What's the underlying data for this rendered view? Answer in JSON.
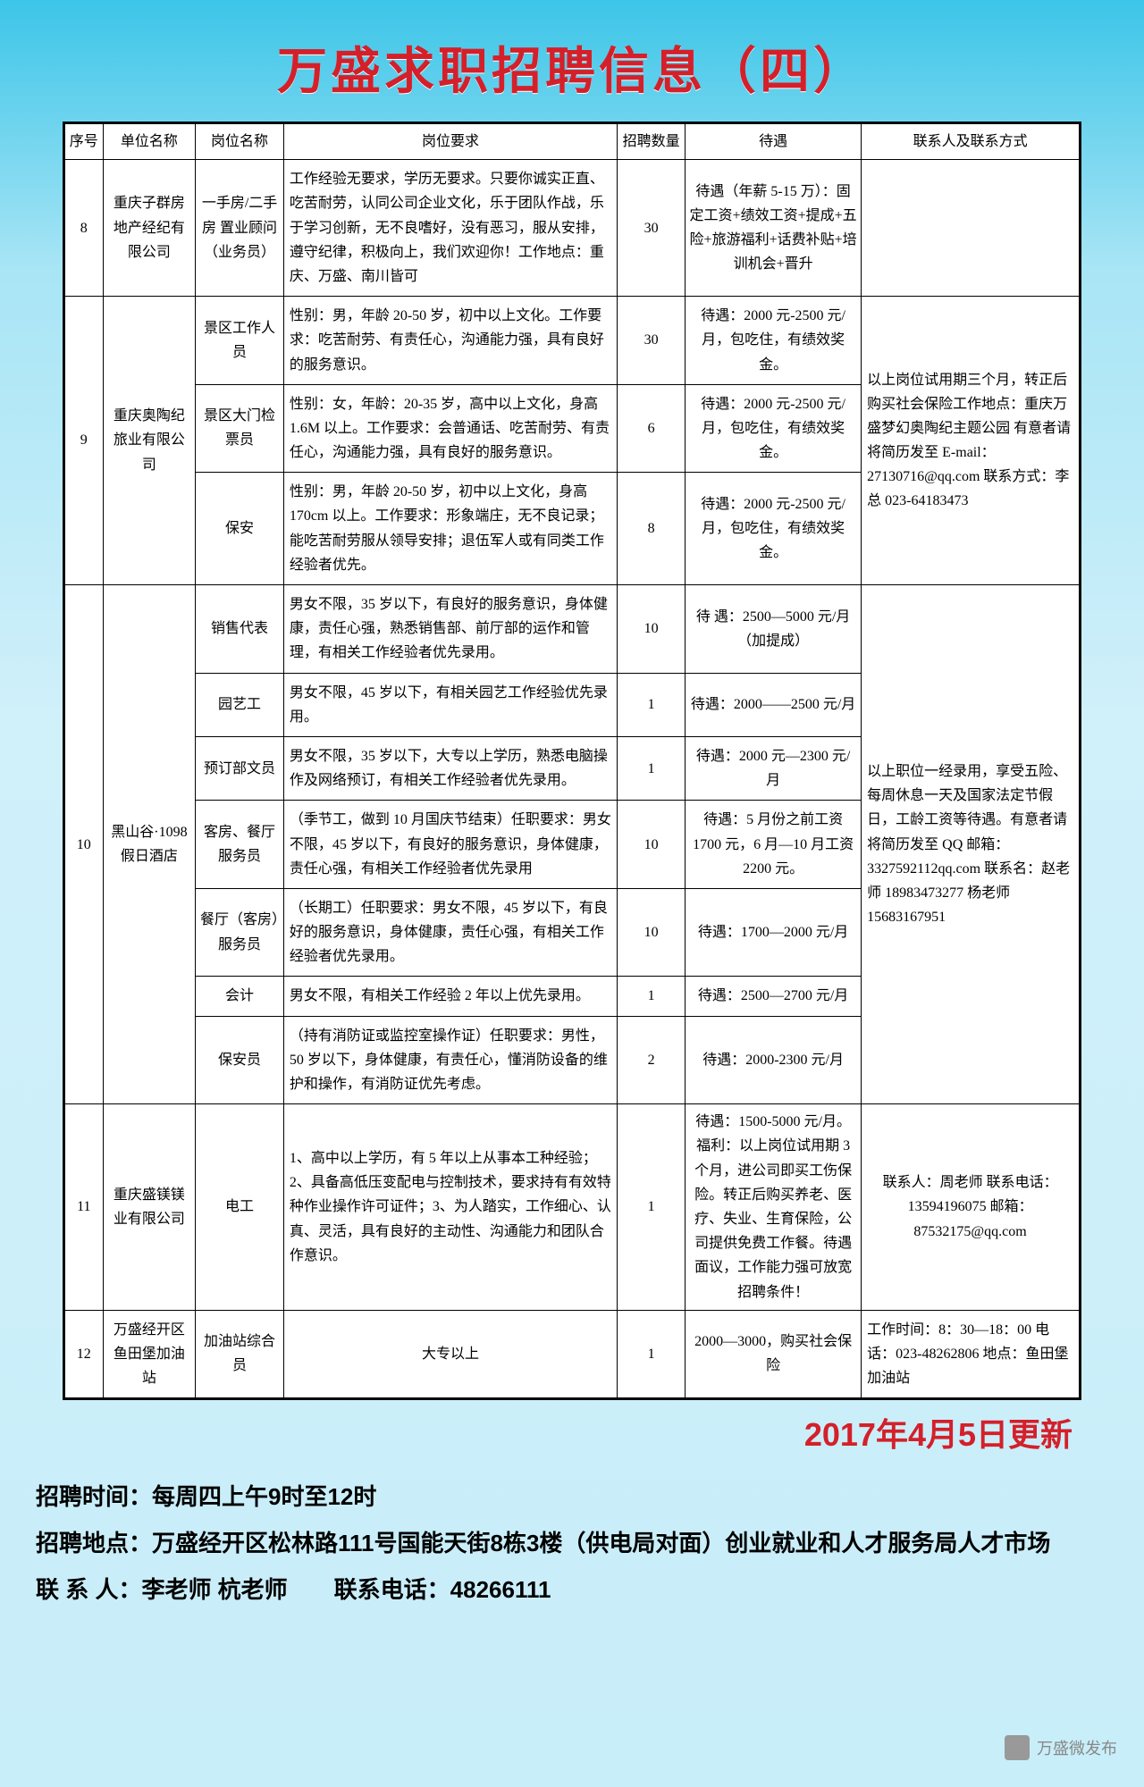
{
  "title": "万盛求职招聘信息（四）",
  "headers": [
    "序号",
    "单位名称",
    "岗位名称",
    "岗位要求",
    "招聘数量",
    "待遇",
    "联系人及联系方式"
  ],
  "rows": [
    {
      "idx": "8",
      "unit": "重庆子群房地产经纪有限公司",
      "pos": "一手房/二手房 置业顾问（业务员）",
      "req": "工作经验无要求，学历无要求。只要你诚实正直、吃苦耐劳，认同公司企业文化，乐于团队作战，乐于学习创新，无不良嗜好，没有恶习，服从安排，遵守纪律，积极向上，我们欢迎你！工作地点：重庆、万盛、南川皆可",
      "num": "30",
      "treat": "待遇（年薪 5-15 万）：固定工资+绩效工资+提成+五险+旅游福利+话费补贴+培训机会+晋升",
      "contact": ""
    }
  ],
  "group9": {
    "idx": "9",
    "unit": "重庆奥陶纪旅业有限公司",
    "contact": "以上岗位试用期三个月，转正后购买社会保险工作地点：重庆万盛梦幻奥陶纪主题公园 有意者请将简历发至 E-mail：27130716@qq.com 联系方式：李总 023-64183473",
    "subs": [
      {
        "pos": "景区工作人员",
        "req": "性别：男，年龄 20-50 岁，初中以上文化。工作要求：吃苦耐劳、有责任心，沟通能力强，具有良好的服务意识。",
        "num": "30",
        "treat": "待遇：2000 元-2500 元/月，包吃住，有绩效奖金。"
      },
      {
        "pos": "景区大门检票员",
        "req": "性别：女，年龄：20-35 岁，高中以上文化，身高 1.6M 以上。工作要求：会普通话、吃苦耐劳、有责任心，沟通能力强，具有良好的服务意识。",
        "num": "6",
        "treat": "待遇：2000 元-2500 元/月，包吃住，有绩效奖金。"
      },
      {
        "pos": "保安",
        "req": "性别：男，年龄 20-50 岁，初中以上文化，身高 170cm 以上。工作要求：形象端庄，无不良记录；能吃苦耐劳服从领导安排；退伍军人或有同类工作经验者优先。",
        "num": "8",
        "treat": "待遇：2000 元-2500 元/月，包吃住，有绩效奖金。"
      }
    ]
  },
  "group10": {
    "idx": "10",
    "unit": "黑山谷·1098 假日酒店",
    "contact": "以上职位一经录用，享受五险、每周休息一天及国家法定节假日，工龄工资等待遇。有意者请将简历发至 QQ 邮箱：3327592112qq.com 联系名：赵老师 18983473277 杨老师 15683167951",
    "subs": [
      {
        "pos": "销售代表",
        "req": "男女不限，35 岁以下，有良好的服务意识，身体健康，责任心强，熟悉销售部、前厅部的运作和管理，有相关工作经验者优先录用。",
        "num": "10",
        "treat": "待 遇：2500—5000 元/月（加提成）"
      },
      {
        "pos": "园艺工",
        "req": "男女不限，45 岁以下，有相关园艺工作经验优先录用。",
        "num": "1",
        "treat": "待遇：2000——2500 元/月"
      },
      {
        "pos": "预订部文员",
        "req": "男女不限，35 岁以下，大专以上学历，熟悉电脑操作及网络预订，有相关工作经验者优先录用。",
        "num": "1",
        "treat": "待遇：2000 元—2300 元/月"
      },
      {
        "pos": "客房、餐厅服务员",
        "req": "（季节工，做到 10 月国庆节结束）任职要求：男女不限，45 岁以下，有良好的服务意识，身体健康，责任心强，有相关工作经验者优先录用",
        "num": "10",
        "treat": "待遇：5 月份之前工资 1700 元，6 月—10 月工资 2200 元。"
      },
      {
        "pos": "餐厅（客房）服务员",
        "req": "（长期工）任职要求：男女不限，45 岁以下，有良好的服务意识，身体健康，责任心强，有相关工作经验者优先录用。",
        "num": "10",
        "treat": "待遇：1700—2000 元/月"
      },
      {
        "pos": "会计",
        "req": "男女不限，有相关工作经验 2 年以上优先录用。",
        "num": "1",
        "treat": "待遇：2500—2700 元/月"
      },
      {
        "pos": "保安员",
        "req": "（持有消防证或监控室操作证）任职要求：男性，50 岁以下，身体健康，有责任心，懂消防设备的维护和操作，有消防证优先考虑。",
        "num": "2",
        "treat": "待遇：2000-2300 元/月"
      }
    ]
  },
  "group11": {
    "idx": "11",
    "unit": "重庆盛镁镁业有限公司",
    "pos": "电工",
    "req": "1、高中以上学历，有 5 年以上从事本工种经验；2、具备高低压变配电与控制技术，要求持有有效特种作业操作许可证件；3、为人踏实，工作细心、认真、灵活，具有良好的主动性、沟通能力和团队合作意识。",
    "num": "1",
    "treat": "待遇：1500-5000 元/月。福利：以上岗位试用期 3 个月，进公司即买工伤保险。转正后购买养老、医疗、失业、生育保险，公司提供免费工作餐。待遇面议，工作能力强可放宽招聘条件！",
    "contact": "联系人：周老师 联系电话：13594196075 邮箱：87532175@qq.com"
  },
  "group12": {
    "idx": "12",
    "unit": "万盛经开区鱼田堡加油站",
    "pos": "加油站综合员",
    "req": "大专以上",
    "num": "1",
    "treat": "2000—3000，购买社会保险",
    "contact": "工作时间：8：30—18：00 电话：023-48262806 地点：鱼田堡加油站"
  },
  "update": "2017年4月5日更新",
  "footer": {
    "l1": "招聘时间：每周四上午9时至12时",
    "l2": "招聘地点：万盛经开区松林路111号国能天街8栋3楼（供电局对面）创业就业和人才服务局人才市场",
    "l3": "联 系 人：李老师 杭老师　　联系电话：48266111"
  },
  "watermark": "万盛微发布"
}
